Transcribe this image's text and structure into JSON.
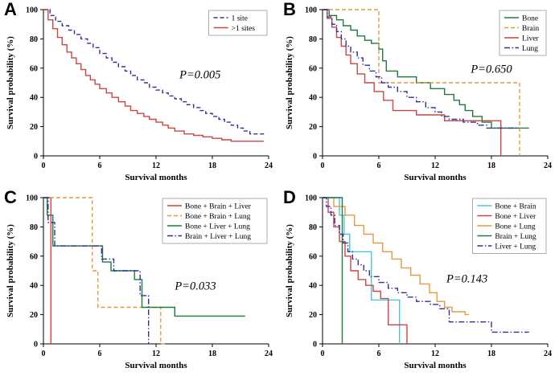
{
  "chart_data": [
    {
      "panel": "A",
      "type": "line",
      "step": true,
      "xlabel": "Survival months",
      "ylabel": "Survival probability (%)",
      "xlim": [
        0,
        24
      ],
      "ylim": [
        0,
        100
      ],
      "xticks": [
        0,
        6,
        12,
        18,
        24
      ],
      "yticks": [
        0,
        20,
        40,
        60,
        80,
        100
      ],
      "legend_position": "top-right",
      "annotation": {
        "text": "P=0.005",
        "x": 14.5,
        "y": 53
      },
      "series": [
        {
          "name": "1 site",
          "color": "#31319e",
          "style": "dashed",
          "points": [
            [
              0,
              100
            ],
            [
              0.7,
              96
            ],
            [
              1.3,
              92
            ],
            [
              2,
              89
            ],
            [
              2.7,
              86
            ],
            [
              3.3,
              83
            ],
            [
              4,
              80
            ],
            [
              4.7,
              77
            ],
            [
              5.3,
              74
            ],
            [
              6,
              70
            ],
            [
              6.7,
              67
            ],
            [
              7.3,
              64
            ],
            [
              8,
              61
            ],
            [
              8.7,
              58
            ],
            [
              9.3,
              55
            ],
            [
              10,
              52
            ],
            [
              10.7,
              50
            ],
            [
              11.3,
              47
            ],
            [
              12,
              45
            ],
            [
              12.7,
              43
            ],
            [
              13.3,
              41
            ],
            [
              14,
              39
            ],
            [
              14.7,
              37
            ],
            [
              15.3,
              35
            ],
            [
              16,
              33
            ],
            [
              16.7,
              31
            ],
            [
              17.3,
              29
            ],
            [
              18,
              27
            ],
            [
              18.7,
              25
            ],
            [
              19.3,
              23
            ],
            [
              20,
              21
            ],
            [
              20.7,
              19
            ],
            [
              21.3,
              17
            ],
            [
              22,
              15
            ],
            [
              23.5,
              15
            ]
          ]
        },
        {
          "name": ">1 sites",
          "color": "#cf4444",
          "style": "solid",
          "points": [
            [
              0,
              100
            ],
            [
              0.5,
              93
            ],
            [
              1,
              87
            ],
            [
              1.5,
              81
            ],
            [
              2,
              76
            ],
            [
              2.5,
              71
            ],
            [
              3,
              67
            ],
            [
              3.5,
              63
            ],
            [
              4,
              59
            ],
            [
              4.5,
              55
            ],
            [
              5,
              52
            ],
            [
              5.5,
              49
            ],
            [
              6,
              46
            ],
            [
              6.7,
              43
            ],
            [
              7.3,
              40
            ],
            [
              8,
              37
            ],
            [
              8.7,
              34
            ],
            [
              9.3,
              31
            ],
            [
              10,
              29
            ],
            [
              10.7,
              27
            ],
            [
              11.3,
              25
            ],
            [
              12,
              23
            ],
            [
              12.7,
              21
            ],
            [
              13.3,
              19
            ],
            [
              14,
              17
            ],
            [
              15,
              15
            ],
            [
              16,
              14
            ],
            [
              17,
              13
            ],
            [
              18,
              12
            ],
            [
              19,
              11
            ],
            [
              20,
              10
            ],
            [
              23.5,
              10
            ]
          ]
        }
      ]
    },
    {
      "panel": "B",
      "type": "line",
      "step": true,
      "xlabel": "Survival months",
      "ylabel": "Survival probability (%)",
      "xlim": [
        0,
        24
      ],
      "ylim": [
        0,
        100
      ],
      "xticks": [
        0,
        6,
        12,
        18,
        24
      ],
      "yticks": [
        0,
        20,
        40,
        60,
        80,
        100
      ],
      "legend_position": "top-right",
      "annotation": {
        "text": "P=0.650",
        "x": 15.8,
        "y": 57
      },
      "series": [
        {
          "name": "Bone",
          "color": "#1f7d3c",
          "style": "solid",
          "points": [
            [
              0,
              100
            ],
            [
              0.7,
              96
            ],
            [
              1.5,
              93
            ],
            [
              2.2,
              89
            ],
            [
              3,
              86
            ],
            [
              3.7,
              82
            ],
            [
              4.5,
              79
            ],
            [
              5.2,
              77
            ],
            [
              6,
              73
            ],
            [
              6.4,
              65
            ],
            [
              6.8,
              58
            ],
            [
              8,
              54
            ],
            [
              10,
              50
            ],
            [
              11.5,
              46
            ],
            [
              13,
              42
            ],
            [
              14,
              38
            ],
            [
              14.6,
              35
            ],
            [
              15.2,
              31
            ],
            [
              16,
              27
            ],
            [
              17,
              23
            ],
            [
              18,
              19
            ],
            [
              22,
              19
            ]
          ]
        },
        {
          "name": "Brain",
          "color": "#e39a43",
          "style": "dashed",
          "points": [
            [
              0,
              100
            ],
            [
              6,
              50
            ],
            [
              21,
              0
            ]
          ]
        },
        {
          "name": "Liver",
          "color": "#cf4444",
          "style": "solid",
          "points": [
            [
              0,
              100
            ],
            [
              0.5,
              94
            ],
            [
              1,
              88
            ],
            [
              1.5,
              81
            ],
            [
              2,
              75
            ],
            [
              2.5,
              69
            ],
            [
              3,
              63
            ],
            [
              3.7,
              56
            ],
            [
              4.5,
              50
            ],
            [
              5.5,
              44
            ],
            [
              6.5,
              38
            ],
            [
              7.5,
              31
            ],
            [
              10,
              28
            ],
            [
              13,
              24
            ],
            [
              19,
              0
            ]
          ]
        },
        {
          "name": "Lung",
          "color": "#31319e",
          "style": "dashdot",
          "points": [
            [
              0,
              100
            ],
            [
              0.5,
              95
            ],
            [
              1,
              90
            ],
            [
              1.5,
              85
            ],
            [
              2,
              80
            ],
            [
              2.5,
              75
            ],
            [
              3,
              71
            ],
            [
              3.7,
              67
            ],
            [
              4.3,
              62
            ],
            [
              5,
              58
            ],
            [
              5.7,
              54
            ],
            [
              6.3,
              50
            ],
            [
              7,
              47
            ],
            [
              8,
              44
            ],
            [
              9,
              40
            ],
            [
              10,
              37
            ],
            [
              11,
              33
            ],
            [
              12,
              30
            ],
            [
              12.7,
              27
            ],
            [
              13.5,
              25
            ],
            [
              15,
              23
            ],
            [
              16.5,
              21
            ],
            [
              17.5,
              19
            ],
            [
              21,
              19
            ]
          ]
        }
      ]
    },
    {
      "panel": "C",
      "type": "line",
      "step": true,
      "xlabel": "Survival months",
      "ylabel": "Survival probability (%)",
      "xlim": [
        0,
        24
      ],
      "ylim": [
        0,
        100
      ],
      "xticks": [
        0,
        6,
        12,
        18,
        24
      ],
      "yticks": [
        0,
        20,
        40,
        60,
        80,
        100
      ],
      "legend_position": "top-right",
      "annotation": {
        "text": "P=0.033",
        "x": 14,
        "y": 37
      },
      "series": [
        {
          "name": "Bone + Brain + Liver",
          "color": "#cf4444",
          "style": "solid",
          "points": [
            [
              0,
              100
            ],
            [
              0.8,
              0
            ]
          ]
        },
        {
          "name": "Bone + Brain + Lung",
          "color": "#e39a43",
          "style": "dashed",
          "points": [
            [
              0,
              100
            ],
            [
              5.2,
              50
            ],
            [
              5.8,
              25
            ],
            [
              12.5,
              0
            ],
            [
              13.2,
              0
            ]
          ]
        },
        {
          "name": "Bone + Liver + Lung",
          "color": "#1f7d3c",
          "style": "solid",
          "points": [
            [
              0,
              100
            ],
            [
              0.4,
              88
            ],
            [
              1,
              67
            ],
            [
              6.3,
              56
            ],
            [
              7.2,
              50
            ],
            [
              9.7,
              44
            ],
            [
              10.5,
              25
            ],
            [
              14,
              19
            ],
            [
              21.5,
              19
            ]
          ]
        },
        {
          "name": "Brain + Liver + Lung",
          "color": "#31319e",
          "style": "dashdot",
          "points": [
            [
              0,
              100
            ],
            [
              0.5,
              83
            ],
            [
              1.2,
              67
            ],
            [
              6.2,
              58
            ],
            [
              7.5,
              50
            ],
            [
              10.3,
              33
            ],
            [
              11.2,
              0
            ]
          ]
        }
      ]
    },
    {
      "panel": "D",
      "type": "line",
      "step": true,
      "xlabel": "Survival months",
      "ylabel": "Survival probability (%)",
      "xlim": [
        0,
        24
      ],
      "ylim": [
        0,
        100
      ],
      "xticks": [
        0,
        6,
        12,
        18,
        24
      ],
      "yticks": [
        0,
        20,
        40,
        60,
        80,
        100
      ],
      "legend_position": "top-right",
      "annotation": {
        "text": "P=0.143",
        "x": 13.2,
        "y": 42
      },
      "series": [
        {
          "name": "Bone + Brain",
          "color": "#4cc5d9",
          "style": "solid",
          "points": [
            [
              0,
              100
            ],
            [
              1.8,
              88
            ],
            [
              2.3,
              75
            ],
            [
              2.9,
              63
            ],
            [
              5.2,
              30
            ],
            [
              8.2,
              0
            ]
          ]
        },
        {
          "name": "Bone + Liver",
          "color": "#cf4444",
          "style": "solid",
          "points": [
            [
              0,
              100
            ],
            [
              0.6,
              90
            ],
            [
              1.2,
              80
            ],
            [
              1.8,
              70
            ],
            [
              2.4,
              60
            ],
            [
              3,
              50
            ],
            [
              3.8,
              44
            ],
            [
              4.6,
              40
            ],
            [
              5.4,
              36
            ],
            [
              6.2,
              31
            ],
            [
              7,
              13
            ],
            [
              9,
              0
            ]
          ]
        },
        {
          "name": "Bone + Lung",
          "color": "#e39a43",
          "style": "solid",
          "points": [
            [
              0,
              100
            ],
            [
              1.2,
              94
            ],
            [
              2.4,
              88
            ],
            [
              3.4,
              81
            ],
            [
              4.4,
              75
            ],
            [
              5.4,
              69
            ],
            [
              6.4,
              63
            ],
            [
              7.4,
              58
            ],
            [
              8.4,
              52
            ],
            [
              9.4,
              47
            ],
            [
              10.4,
              41
            ],
            [
              11.4,
              35
            ],
            [
              12.2,
              29
            ],
            [
              13,
              25
            ],
            [
              13.8,
              22
            ],
            [
              15.2,
              20
            ],
            [
              15.6,
              20
            ]
          ]
        },
        {
          "name": "Brain + Lung",
          "color": "#1f7d3c",
          "style": "solid",
          "points": [
            [
              0,
              100
            ],
            [
              2.1,
              0
            ]
          ]
        },
        {
          "name": "Liver + Lung",
          "color": "#31319e",
          "style": "dashdot",
          "points": [
            [
              0,
              100
            ],
            [
              0.4,
              94
            ],
            [
              0.9,
              88
            ],
            [
              1.3,
              81
            ],
            [
              1.8,
              75
            ],
            [
              2.2,
              69
            ],
            [
              2.7,
              63
            ],
            [
              3.2,
              58
            ],
            [
              3.8,
              54
            ],
            [
              4.4,
              50
            ],
            [
              5,
              46
            ],
            [
              6,
              42
            ],
            [
              7,
              38
            ],
            [
              8,
              35
            ],
            [
              9,
              32
            ],
            [
              10,
              29
            ],
            [
              11.5,
              27
            ],
            [
              12.5,
              24
            ],
            [
              13.5,
              15
            ],
            [
              18,
              8
            ],
            [
              22,
              8
            ]
          ]
        }
      ]
    }
  ]
}
